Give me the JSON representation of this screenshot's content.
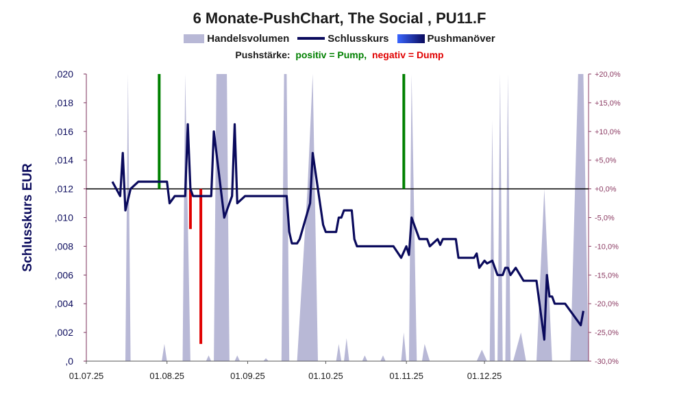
{
  "chart_data": {
    "type": "line",
    "title": "6 Monate-PushChart, The Social , PU11.F",
    "legend": [
      "Handelsvolumen",
      "Schlusskurs",
      "Pushmanöver"
    ],
    "legend_placement": "top-center",
    "pushstaerke": {
      "label": "Pushstärke:",
      "positive": "positiv = Pump,",
      "negative": "negativ = Dump"
    },
    "ylabel": "Schlusskurs EUR",
    "ylim": [
      0,
      0.02
    ],
    "y_ticks": [
      ",0",
      ",002",
      ",004",
      ",006",
      ",008",
      ",010",
      ",012",
      ",014",
      ",016",
      ",018",
      ",020"
    ],
    "y2lim": [
      -30,
      20
    ],
    "y2_ticks": [
      "-30,0%",
      "-25,0%",
      "-20,0%",
      "-15,0%",
      "-10,0%",
      "-5,0%",
      "+0,0%",
      "+5,0%",
      "+10,0%",
      "+15,0%",
      "+20,0%"
    ],
    "x_ticks": [
      "01.07.25",
      "01.08.25",
      "01.09.25",
      "01.10.25",
      "01.11.25",
      "01.12.25"
    ],
    "colors": {
      "close": "#0a0a5c",
      "volume": "#b8b8d6",
      "pump": "#008000",
      "dump": "#e00000",
      "zeroline": "#000000",
      "y2axis": "#8b3a62"
    },
    "close_series": [
      [
        "2025-07-11",
        0.0125
      ],
      [
        "2025-07-14",
        0.0115
      ],
      [
        "2025-07-15",
        0.0145
      ],
      [
        "2025-07-16",
        0.0105
      ],
      [
        "2025-07-18",
        0.012
      ],
      [
        "2025-07-21",
        0.0125
      ],
      [
        "2025-07-30",
        0.0125
      ],
      [
        "2025-08-01",
        0.0125
      ],
      [
        "2025-08-02",
        0.011
      ],
      [
        "2025-08-04",
        0.0115
      ],
      [
        "2025-08-08",
        0.0115
      ],
      [
        "2025-08-09",
        0.0165
      ],
      [
        "2025-08-10",
        0.012
      ],
      [
        "2025-08-11",
        0.0115
      ],
      [
        "2025-08-18",
        0.0115
      ],
      [
        "2025-08-19",
        0.016
      ],
      [
        "2025-08-23",
        0.01
      ],
      [
        "2025-08-26",
        0.0115
      ],
      [
        "2025-08-27",
        0.0165
      ],
      [
        "2025-08-28",
        0.011
      ],
      [
        "2025-08-31",
        0.0115
      ],
      [
        "2025-09-16",
        0.0115
      ],
      [
        "2025-09-17",
        0.009
      ],
      [
        "2025-09-18",
        0.0082
      ],
      [
        "2025-09-20",
        0.0082
      ],
      [
        "2025-09-21",
        0.0085
      ],
      [
        "2025-09-25",
        0.011
      ],
      [
        "2025-09-26",
        0.0145
      ],
      [
        "2025-09-30",
        0.0095
      ],
      [
        "2025-10-01",
        0.009
      ],
      [
        "2025-10-05",
        0.009
      ],
      [
        "2025-10-06",
        0.01
      ],
      [
        "2025-10-07",
        0.01
      ],
      [
        "2025-10-08",
        0.0105
      ],
      [
        "2025-10-11",
        0.0105
      ],
      [
        "2025-10-12",
        0.0085
      ],
      [
        "2025-10-13",
        0.008
      ],
      [
        "2025-10-27",
        0.008
      ],
      [
        "2025-10-30",
        0.0072
      ],
      [
        "2025-11-01",
        0.008
      ],
      [
        "2025-11-02",
        0.0074
      ],
      [
        "2025-11-03",
        0.01
      ],
      [
        "2025-11-06",
        0.0085
      ],
      [
        "2025-11-09",
        0.0085
      ],
      [
        "2025-11-10",
        0.008
      ],
      [
        "2025-11-13",
        0.0085
      ],
      [
        "2025-11-14",
        0.0081
      ],
      [
        "2025-11-15",
        0.0085
      ],
      [
        "2025-11-20",
        0.0085
      ],
      [
        "2025-11-21",
        0.0072
      ],
      [
        "2025-11-27",
        0.0072
      ],
      [
        "2025-11-28",
        0.0075
      ],
      [
        "2025-11-29",
        0.0065
      ],
      [
        "2025-12-01",
        0.007
      ],
      [
        "2025-12-02",
        0.0068
      ],
      [
        "2025-12-04",
        0.007
      ],
      [
        "2025-12-06",
        0.006
      ],
      [
        "2025-12-08",
        0.006
      ],
      [
        "2025-12-09",
        0.0065
      ],
      [
        "2025-12-10",
        0.0065
      ],
      [
        "2025-12-11",
        0.006
      ],
      [
        "2025-12-13",
        0.0065
      ],
      [
        "2025-12-16",
        0.0056
      ],
      [
        "2025-12-21",
        0.0056
      ],
      [
        "2025-12-24",
        0.0015
      ],
      [
        "2025-12-25",
        0.006
      ],
      [
        "2025-12-26",
        0.0045
      ],
      [
        "2025-12-27",
        0.0045
      ],
      [
        "2025-12-28",
        0.004
      ],
      [
        "2026-01-01",
        0.004
      ],
      [
        "2026-01-07",
        0.0025
      ],
      [
        "2026-01-08",
        0.0035
      ]
    ],
    "push_series": [
      {
        "date": "2025-07-29",
        "value": 20,
        "type": "pump"
      },
      {
        "date": "2025-08-10",
        "value": -7,
        "type": "dump"
      },
      {
        "date": "2025-08-14",
        "value": -27,
        "type": "dump"
      },
      {
        "date": "2025-10-31",
        "value": 20,
        "type": "pump"
      }
    ],
    "volume_spikes": [
      [
        "2025-07-16",
        -30
      ],
      [
        "2025-07-17",
        20
      ],
      [
        "2025-07-18",
        -30
      ],
      [
        "2025-07-30",
        -30
      ],
      [
        "2025-07-31",
        -27
      ],
      [
        "2025-08-01",
        -30
      ],
      [
        "2025-08-07",
        -30
      ],
      [
        "2025-08-08",
        20
      ],
      [
        "2025-08-10",
        -30
      ],
      [
        "2025-08-16",
        -30
      ],
      [
        "2025-08-17",
        -29
      ],
      [
        "2025-08-18",
        -30
      ],
      [
        "2025-08-19",
        -30
      ],
      [
        "2025-08-20",
        20
      ],
      [
        "2025-08-24",
        20
      ],
      [
        "2025-08-25",
        -30
      ],
      [
        "2025-08-27",
        -30
      ],
      [
        "2025-08-28",
        -29
      ],
      [
        "2025-08-29",
        -30
      ],
      [
        "2025-09-07",
        -30
      ],
      [
        "2025-09-08",
        -29.5
      ],
      [
        "2025-09-09",
        -30
      ],
      [
        "2025-09-14",
        -30
      ],
      [
        "2025-09-15",
        20
      ],
      [
        "2025-09-16",
        20
      ],
      [
        "2025-09-17",
        -30
      ],
      [
        "2025-09-20",
        -30
      ],
      [
        "2025-09-24",
        0
      ],
      [
        "2025-09-26",
        20
      ],
      [
        "2025-09-28",
        -30
      ],
      [
        "2025-10-05",
        -30
      ],
      [
        "2025-10-06",
        -27
      ],
      [
        "2025-10-07",
        -30
      ],
      [
        "2025-10-08",
        -30
      ],
      [
        "2025-10-09",
        -26
      ],
      [
        "2025-10-10",
        -30
      ],
      [
        "2025-10-15",
        -30
      ],
      [
        "2025-10-16",
        -29
      ],
      [
        "2025-10-17",
        -30
      ],
      [
        "2025-10-22",
        -30
      ],
      [
        "2025-10-23",
        -29
      ],
      [
        "2025-10-24",
        -30
      ],
      [
        "2025-10-30",
        -30
      ],
      [
        "2025-10-31",
        -25
      ],
      [
        "2025-11-01",
        -30
      ],
      [
        "2025-11-02",
        -30
      ],
      [
        "2025-11-03",
        20
      ],
      [
        "2025-11-05",
        -30
      ],
      [
        "2025-11-07",
        -30
      ],
      [
        "2025-11-08",
        -27
      ],
      [
        "2025-11-10",
        -30
      ],
      [
        "2025-11-28",
        -30
      ],
      [
        "2025-11-30",
        -28
      ],
      [
        "2025-12-02",
        -30
      ],
      [
        "2025-12-03",
        -30
      ],
      [
        "2025-12-04",
        12
      ],
      [
        "2025-12-05",
        -30
      ],
      [
        "2025-12-06",
        -30
      ],
      [
        "2025-12-07",
        20
      ],
      [
        "2025-12-08",
        -30
      ],
      [
        "2025-12-09",
        -30
      ],
      [
        "2025-12-10",
        20
      ],
      [
        "2025-12-11",
        -30
      ],
      [
        "2025-12-12",
        -30
      ],
      [
        "2025-12-15",
        -25
      ],
      [
        "2025-12-17",
        -30
      ],
      [
        "2025-12-21",
        -30
      ],
      [
        "2025-12-24",
        0
      ],
      [
        "2025-12-27",
        -30
      ],
      [
        "2026-01-03",
        -30
      ],
      [
        "2026-01-06",
        20
      ],
      [
        "2026-01-08",
        20
      ]
    ]
  }
}
